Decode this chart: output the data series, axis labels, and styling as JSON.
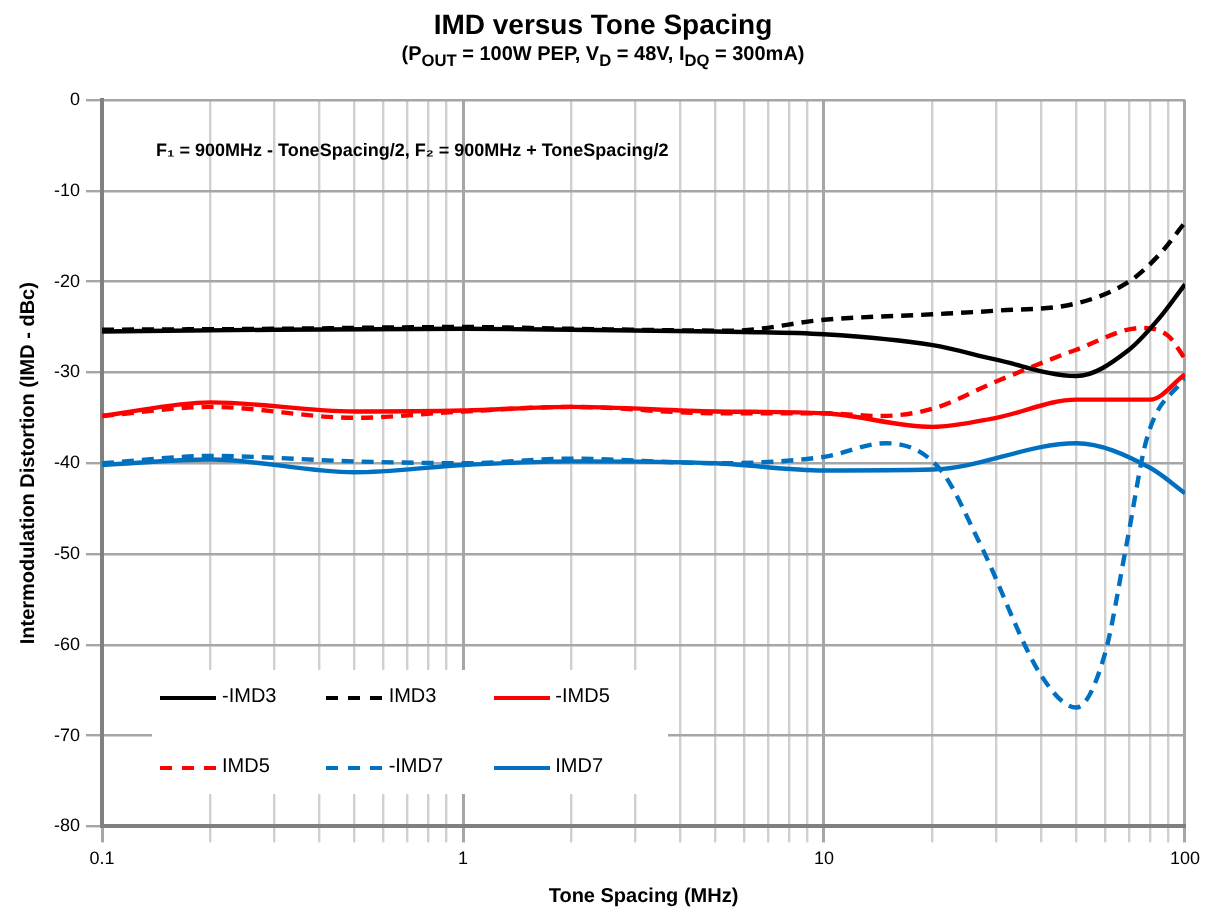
{
  "chart_data": {
    "type": "line",
    "title": "IMD versus Tone Spacing",
    "subtitle": "(P$_{OUT}$ = 100W PEP,  V$_{D}$ = 48V, I$_{DQ}$ = 300mA)",
    "xlabel": "Tone Spacing (MHz)",
    "ylabel": "Intermodulation Distortion (IMD - dBc)",
    "annotations": [
      "F₁ = 900MHz - ToneSpacing/2, F₂ = 900MHz + ToneSpacing/2"
    ],
    "log": "x",
    "xlim": [
      0.1,
      100
    ],
    "ylim": [
      -80,
      0
    ],
    "xticks": [
      0.1,
      {
        "value": 0.2,
        "label": null
      },
      {
        "value": 0.3,
        "label": null
      },
      {
        "value": 0.4,
        "label": null
      },
      {
        "value": 0.5,
        "label": null
      },
      {
        "value": 0.6,
        "label": null
      },
      {
        "value": 0.7,
        "label": null
      },
      {
        "value": 0.8,
        "label": null
      },
      {
        "value": 0.9,
        "label": null
      },
      1,
      {
        "value": 2,
        "label": null
      },
      {
        "value": 3,
        "label": null
      },
      {
        "value": 4,
        "label": null
      },
      {
        "value": 5,
        "label": null
      },
      {
        "value": 6,
        "label": null
      },
      {
        "value": 7,
        "label": null
      },
      {
        "value": 8,
        "label": null
      },
      {
        "value": 9,
        "label": null
      },
      10,
      {
        "value": 20,
        "label": null
      },
      {
        "value": 30,
        "label": null
      },
      {
        "value": 40,
        "label": null
      },
      {
        "value": 50,
        "label": null
      },
      {
        "value": 60,
        "label": null
      },
      {
        "value": 70,
        "label": null
      },
      {
        "value": 80,
        "label": null
      },
      {
        "value": 90,
        "label": null
      },
      100
    ],
    "yticks": [
      -80,
      -70,
      -60,
      -50,
      -40,
      -30,
      -20,
      -10,
      0
    ],
    "grid": true,
    "legend": "bottom left",
    "marker": "none",
    "series": [
      {
        "name": "-IMD3",
        "color": "#000000",
        "line_style": "solid",
        "x": [
          0.1,
          0.3,
          1,
          2,
          5,
          10,
          20,
          30,
          50,
          70,
          85,
          100
        ],
        "values": [
          -25.5,
          -25.3,
          -25.2,
          -25.3,
          -25.5,
          -25.8,
          -27,
          -28.6,
          -30.4,
          -27.5,
          -24,
          -20.3
        ]
      },
      {
        "name": "IMD3",
        "color": "#000000",
        "line_style": "dashed",
        "x": [
          0.1,
          0.3,
          1,
          2,
          5.6,
          10,
          20,
          30,
          50,
          70,
          85,
          100
        ],
        "values": [
          -25.3,
          -25.2,
          -25,
          -25.2,
          -25.4,
          -24.2,
          -23.6,
          -23.2,
          -22.4,
          -20,
          -17,
          -13.5
        ]
      },
      {
        "name": "-IMD5",
        "color": "#ff0000",
        "line_style": "solid",
        "x": [
          0.1,
          0.2,
          0.5,
          1,
          2,
          5,
          10,
          20,
          30,
          50,
          80,
          100
        ],
        "values": [
          -34.8,
          -33.3,
          -34.3,
          -34.2,
          -33.8,
          -34.3,
          -34.5,
          -36,
          -35,
          -33,
          -33,
          -30.2
        ]
      },
      {
        "name": "IMD5",
        "color": "#ff0000",
        "line_style": "dashed",
        "x": [
          0.1,
          0.2,
          0.5,
          1,
          2,
          5,
          10,
          14.3,
          20,
          30,
          50,
          76,
          90,
          100
        ],
        "values": [
          -34.8,
          -33.8,
          -35,
          -34.3,
          -33.8,
          -34.5,
          -34.5,
          -34.8,
          -34,
          -31,
          -27.5,
          -25.1,
          -26,
          -28.5
        ]
      },
      {
        "name": "-IMD7",
        "color": "#0070c0",
        "line_style": "dashed",
        "x": [
          0.1,
          0.2,
          0.5,
          1,
          2,
          5,
          10,
          14.8,
          21,
          27,
          40,
          50,
          60,
          69,
          78.5,
          100
        ],
        "values": [
          -40,
          -39.2,
          -39.8,
          -40,
          -39.5,
          -40,
          -39.3,
          -37.8,
          -40.7,
          -48.8,
          -63.4,
          -66.9,
          -61,
          -48.8,
          -37.2,
          -30.5
        ]
      },
      {
        "name": "IMD7",
        "color": "#0070c0",
        "line_style": "solid",
        "x": [
          0.1,
          0.2,
          0.5,
          1,
          2,
          5,
          10,
          20,
          50,
          80,
          100
        ],
        "values": [
          -40.2,
          -39.6,
          -41,
          -40.2,
          -39.8,
          -40,
          -40.8,
          -40.7,
          -37.8,
          -40.5,
          -43.3
        ]
      }
    ]
  }
}
